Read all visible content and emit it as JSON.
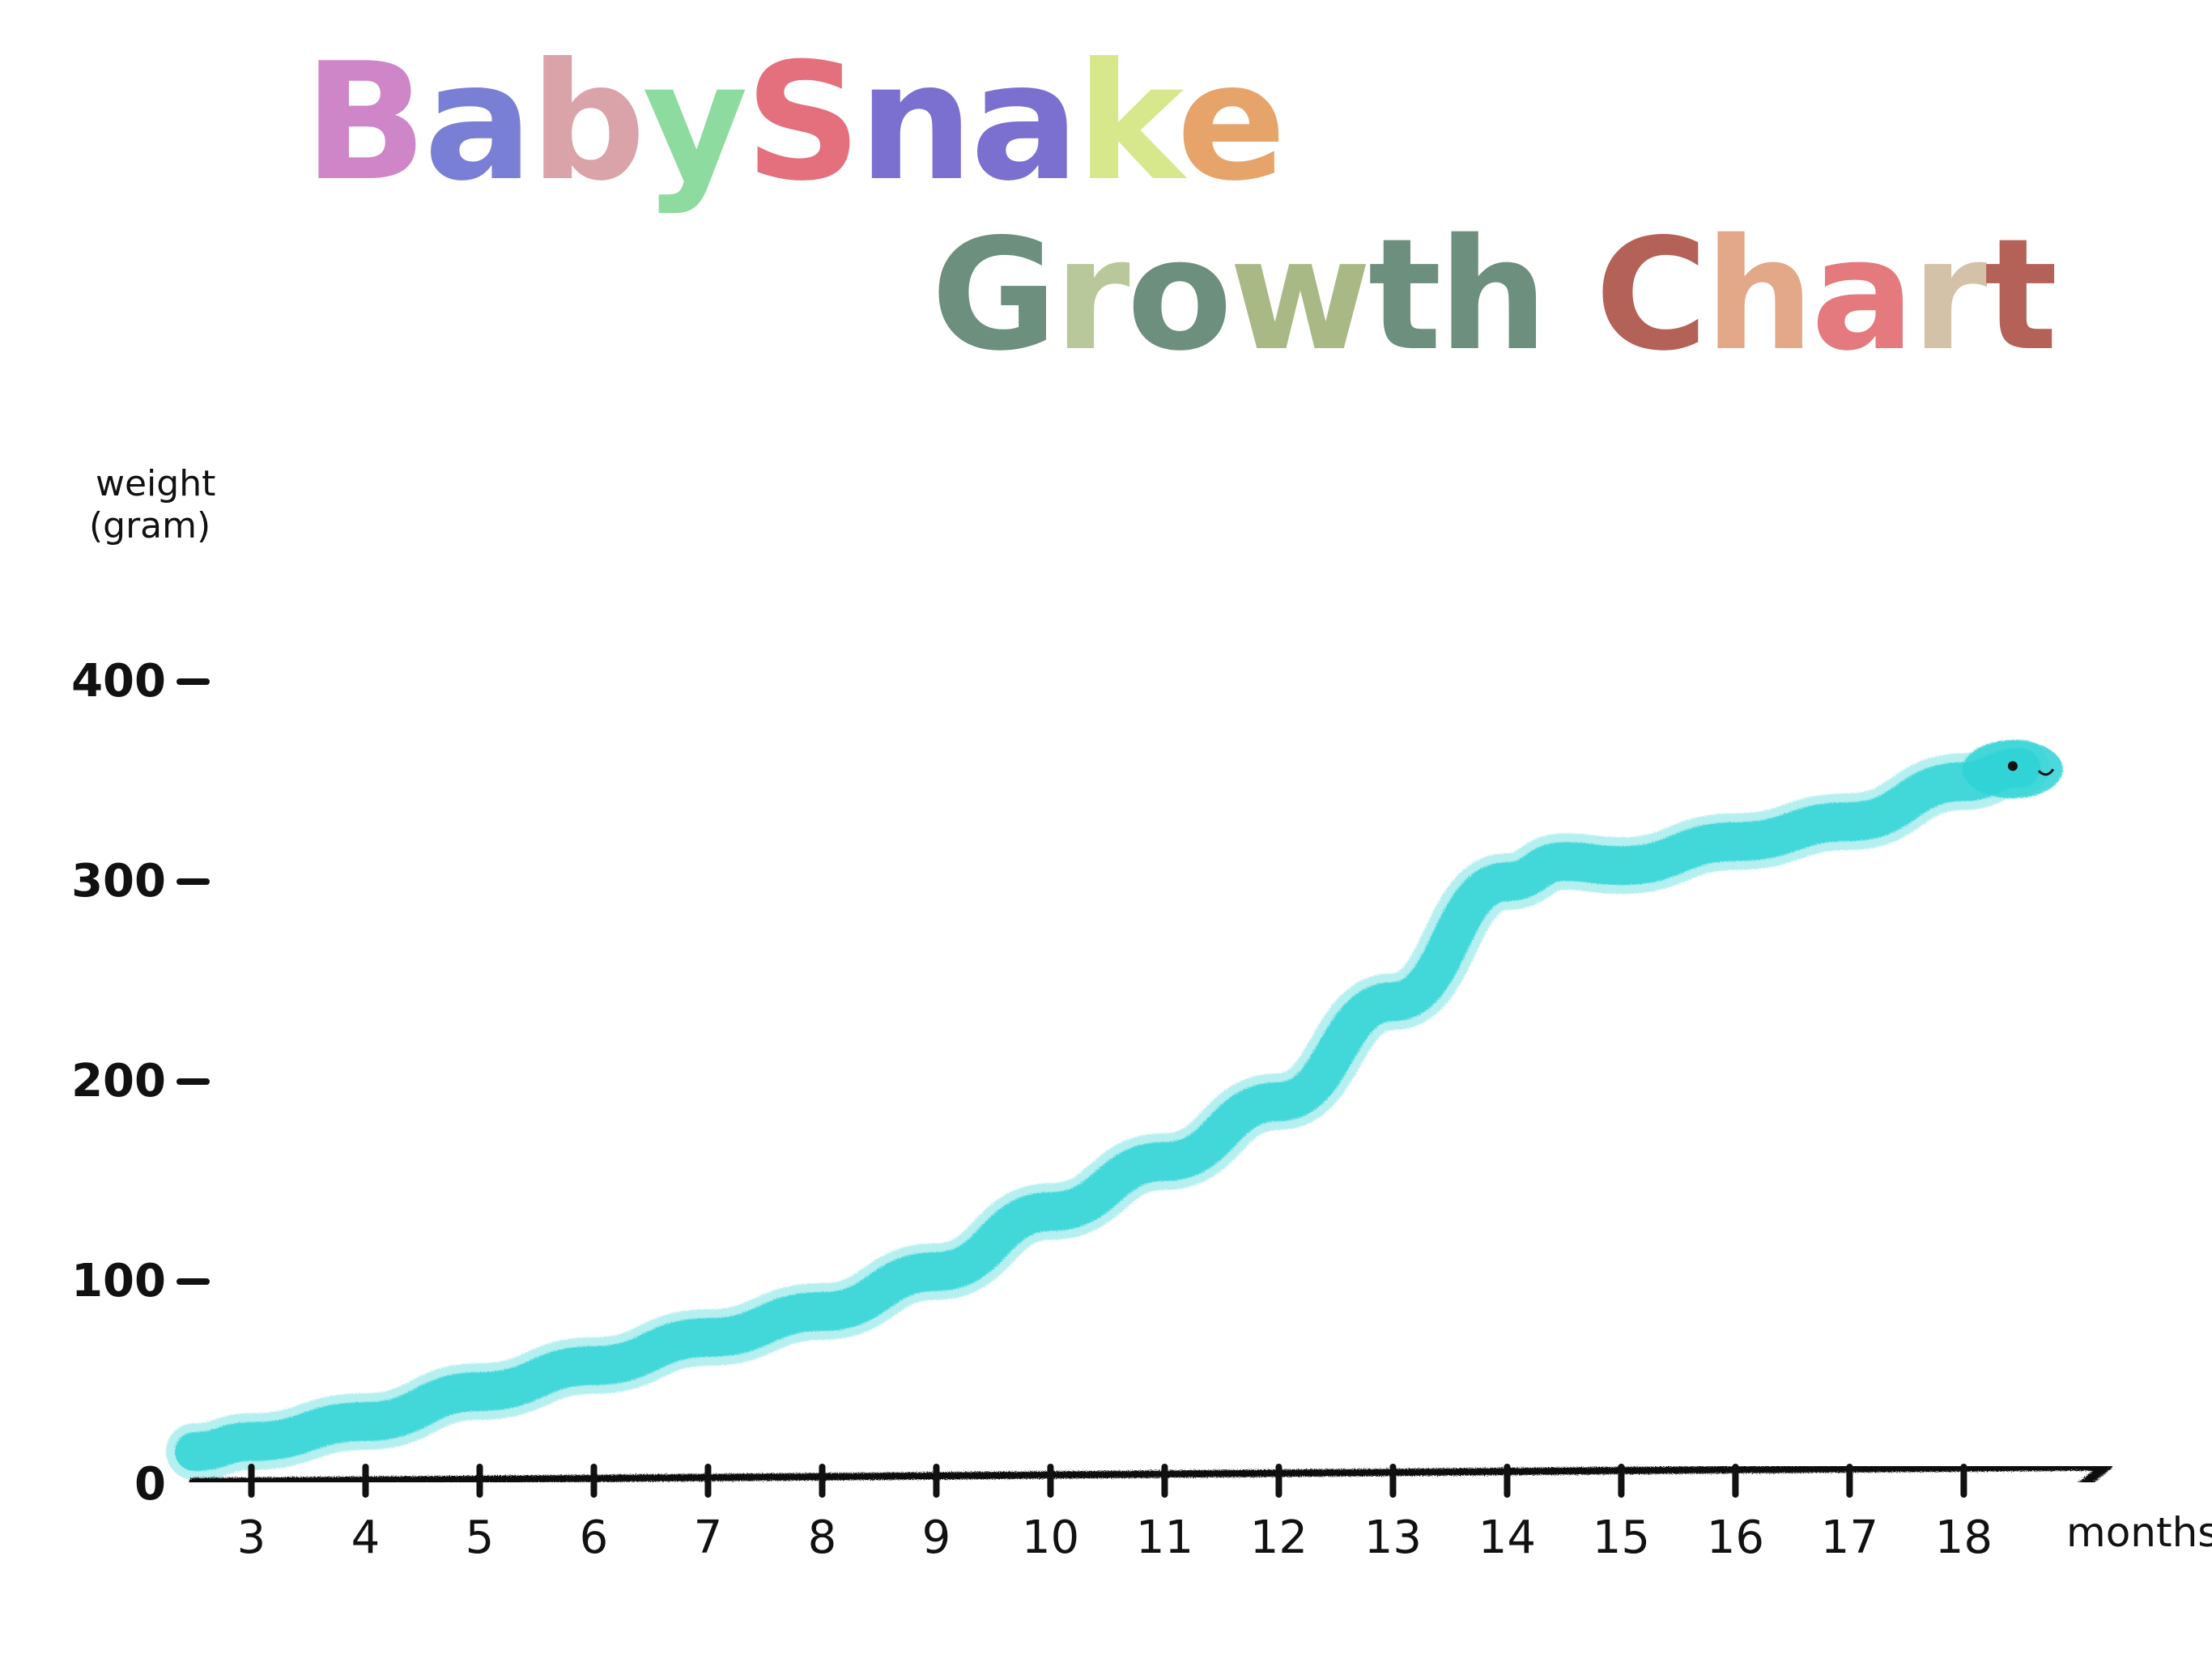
{
  "title": {
    "line1": {
      "text": "BabySnake",
      "letter_colors": [
        "#cf86c8",
        "#7a7fd6",
        "#d9a3a9",
        "#8edba0",
        "#e3707c",
        "#7b6fd0",
        "#7b6fd0",
        "#d7e88c",
        "#e6a46a"
      ]
    },
    "line2": {
      "text": "Growth Chart",
      "letter_colors": [
        "#6d8f7d",
        "#b9c89a",
        "#6d8f7d",
        "#a9b985",
        "#6d8f7d",
        "#6d8f7d",
        "#ffffff",
        "#b46157",
        "#e2a887",
        "#e57a7e",
        "#d4c2a8",
        "#b46157"
      ]
    }
  },
  "chart_data": {
    "type": "line",
    "title": "BabySnake Growth Chart",
    "xlabel": "months",
    "ylabel": "weight (gram)",
    "x_ticks": [
      "3",
      "4",
      "5",
      "6",
      "7",
      "8",
      "9",
      "10",
      "11",
      "12",
      "13",
      "14",
      "15",
      "16",
      "17",
      "18"
    ],
    "y_ticks": [
      "0",
      "100",
      "200",
      "300",
      "400"
    ],
    "xlim": [
      2.5,
      18.6
    ],
    "ylim": [
      0,
      450
    ],
    "grid": true,
    "series": [
      {
        "color": "#2fd3d6",
        "x": [
          2.5,
          3,
          4,
          5,
          6,
          7,
          8,
          9,
          10,
          11,
          12,
          13,
          14,
          14.5,
          15,
          16,
          17,
          18,
          18.5
        ],
        "y": [
          15,
          20,
          30,
          45,
          58,
          72,
          85,
          105,
          135,
          160,
          190,
          240,
          300,
          310,
          308,
          320,
          330,
          350,
          357
        ]
      }
    ]
  }
}
